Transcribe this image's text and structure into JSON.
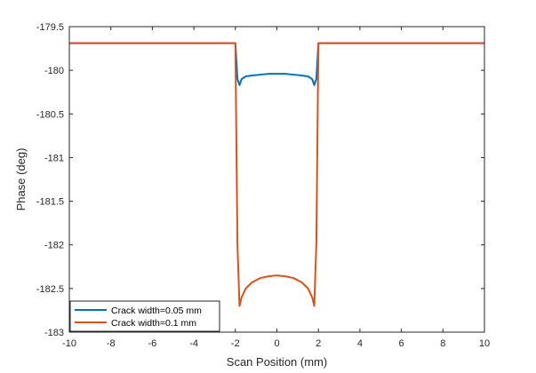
{
  "chart_data": {
    "type": "line",
    "title": "",
    "xlabel": "Scan Position (mm)",
    "ylabel": "Phase (deg)",
    "xlim": [
      -10,
      10
    ],
    "ylim": [
      -183,
      -179.5
    ],
    "xticks": [
      -10,
      -8,
      -6,
      -4,
      -2,
      0,
      2,
      4,
      6,
      8,
      10
    ],
    "yticks": [
      -179.5,
      -180,
      -180.5,
      -181,
      -181.5,
      -182,
      -182.5,
      -183
    ],
    "grid": false,
    "legend_position": "bottom-left",
    "series": [
      {
        "name": "Crack width=0.05 mm",
        "color": "#0072BD",
        "x": [
          -10,
          -2.0,
          -1.95,
          -1.9,
          -1.8,
          -1.7,
          -1.5,
          -1.2,
          -0.8,
          -0.4,
          0,
          0.4,
          0.8,
          1.2,
          1.5,
          1.7,
          1.8,
          1.9,
          1.95,
          2.0,
          10
        ],
        "y": [
          -179.69,
          -179.69,
          -179.9,
          -180.1,
          -180.17,
          -180.1,
          -180.07,
          -180.06,
          -180.05,
          -180.04,
          -180.04,
          -180.04,
          -180.05,
          -180.06,
          -180.07,
          -180.1,
          -180.17,
          -180.1,
          -179.9,
          -179.69,
          -179.69
        ]
      },
      {
        "name": "Crack width=0.1 mm",
        "color": "#D95319",
        "x": [
          -10,
          -2.0,
          -1.9,
          -1.8,
          -1.7,
          -1.5,
          -1.2,
          -0.8,
          -0.4,
          0,
          0.4,
          0.8,
          1.2,
          1.5,
          1.7,
          1.8,
          1.9,
          2.0,
          10
        ],
        "y": [
          -179.69,
          -179.69,
          -182.0,
          -182.7,
          -182.6,
          -182.5,
          -182.43,
          -182.38,
          -182.36,
          -182.35,
          -182.36,
          -182.38,
          -182.43,
          -182.5,
          -182.6,
          -182.7,
          -182.0,
          -179.69,
          -179.69
        ]
      }
    ]
  }
}
